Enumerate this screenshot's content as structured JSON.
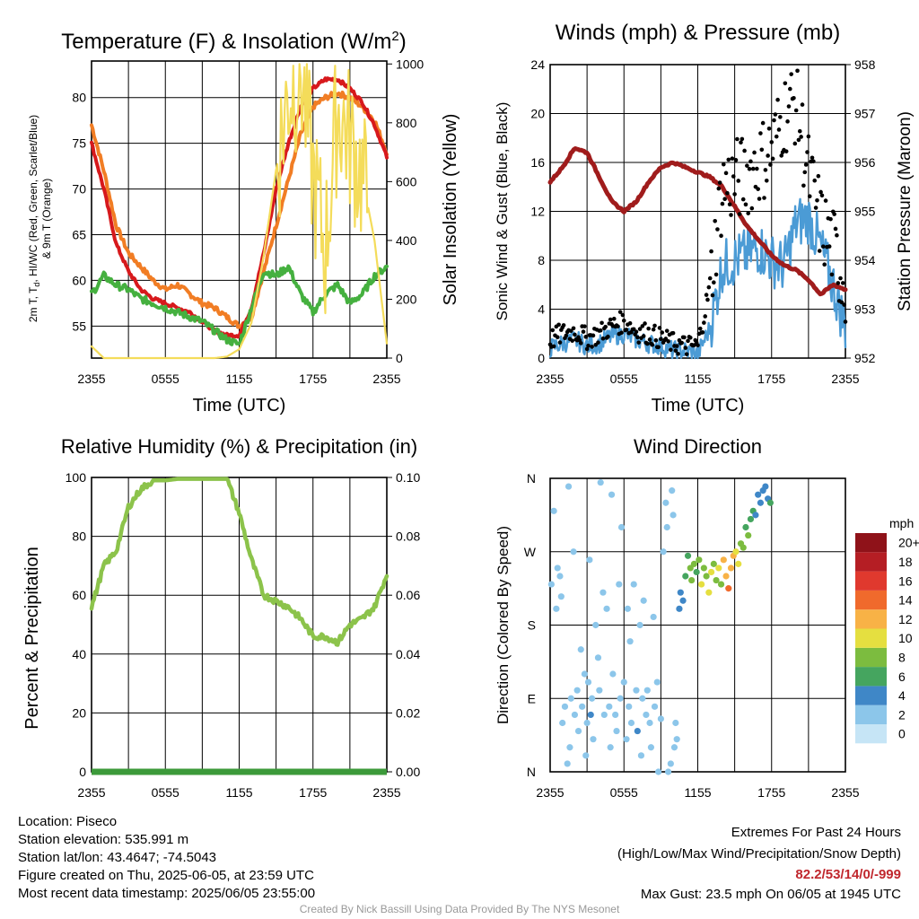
{
  "colors": {
    "temp_2m": "#d7191c",
    "dewpoint": "#45b03f",
    "temp_9m": "#f17d24",
    "insolation": "#f4dc5a",
    "wind_sonic": "#4b9bd5",
    "gust": "#000000",
    "pressure": "#a01c1c",
    "rh": "#8cc34b",
    "precip": "#3c9a3a",
    "extremes": "#c0272d"
  },
  "chart_data": [
    {
      "id": "temperature",
      "type": "line",
      "title": "Temperature (F) & Insolation (W/m",
      "title_sup": "2",
      "title_end": ")",
      "ylabel_lines": [
        "2m T, T",
        "d",
        ", HI/WC (Red, Green, Scarlet/Blue)",
        "& 9m T (Orange)"
      ],
      "y2label": "Solar Insolation (Yellow)",
      "xlabel": "Time (UTC)",
      "x_ticks": [
        "2355",
        "0555",
        "1155",
        "1755",
        "2355"
      ],
      "ylim": [
        51.5,
        84
      ],
      "y_ticks": [
        55,
        60,
        65,
        70,
        75,
        80
      ],
      "y2lim": [
        0,
        1010
      ],
      "y2_ticks": [
        0,
        200,
        400,
        600,
        800,
        1000
      ],
      "x_hours": [
        0,
        1,
        2,
        3,
        4,
        5,
        6,
        7,
        8,
        9,
        10,
        11,
        12,
        13,
        14,
        15,
        16,
        17,
        18,
        19,
        20,
        21,
        22,
        23,
        24
      ],
      "series": [
        {
          "key": "temp_9m",
          "axis": "left",
          "values": [
            77,
            72,
            66,
            63,
            61.5,
            60,
            59,
            59.5,
            58.5,
            57.5,
            57,
            56,
            55,
            56,
            61,
            66,
            71,
            76,
            79,
            80,
            80.5,
            80,
            79,
            77.5,
            74
          ]
        },
        {
          "key": "temp_2m",
          "axis": "left",
          "values": [
            75,
            70,
            64,
            61,
            59,
            58,
            57.5,
            57,
            56.5,
            55.5,
            54.5,
            54,
            54,
            57,
            63,
            70,
            75,
            79,
            81,
            82,
            82,
            81,
            79.5,
            77,
            73.5
          ]
        },
        {
          "key": "dewpoint",
          "axis": "left",
          "values": [
            58.5,
            60.5,
            59.5,
            59,
            58,
            57.5,
            57,
            56.5,
            56,
            55.5,
            54.5,
            53.5,
            53,
            57,
            61,
            60.5,
            61.5,
            58.5,
            56.5,
            58.5,
            59.5,
            57.5,
            58.5,
            60.5,
            61.5
          ]
        },
        {
          "key": "insolation",
          "axis": "right",
          "values": [
            40,
            0,
            0,
            0,
            0,
            0,
            0,
            0,
            0,
            0,
            0,
            5,
            30,
            120,
            350,
            640,
            900,
            980,
            620,
            360,
            850,
            740,
            620,
            400,
            50
          ]
        }
      ]
    },
    {
      "id": "winds",
      "type": "line",
      "title": "Winds (mph) & Pressure (mb)",
      "ylabel": "Sonic Wind & Gust (Blue, Black)",
      "y2label": "Station Pressure (Maroon)",
      "xlabel": "Time (UTC)",
      "x_ticks": [
        "2355",
        "0555",
        "1155",
        "1755",
        "2355"
      ],
      "ylim": [
        0,
        24
      ],
      "y_ticks": [
        0,
        4,
        8,
        12,
        16,
        20,
        24
      ],
      "y2lim": [
        952,
        958
      ],
      "y2_ticks": [
        952,
        953,
        954,
        955,
        956,
        957,
        958
      ],
      "x_hours": [
        0,
        1,
        2,
        3,
        4,
        5,
        6,
        7,
        8,
        9,
        10,
        11,
        12,
        13,
        14,
        15,
        16,
        17,
        18,
        19,
        20,
        21,
        22,
        23,
        24
      ],
      "series": [
        {
          "key": "wind_sonic",
          "axis": "left",
          "values": [
            0.8,
            1.2,
            1.5,
            1.0,
            1.2,
            1.8,
            2.0,
            1.5,
            1.2,
            1.0,
            0.6,
            0.6,
            0.3,
            2.5,
            7.5,
            8.0,
            8.5,
            9.0,
            8.0,
            7.5,
            11.0,
            11.5,
            9.0,
            6.0,
            2.5
          ]
        },
        {
          "key": "gust",
          "axis": "left",
          "values": [
            1.5,
            2.0,
            2.2,
            1.6,
            2.0,
            2.6,
            3.0,
            2.2,
            2.0,
            1.6,
            1.2,
            1.0,
            1.0,
            6.0,
            14.0,
            14.5,
            15.0,
            16.0,
            17.0,
            20.0,
            21.0,
            15.0,
            11.0,
            9.0,
            6.0
          ]
        },
        {
          "key": "pressure",
          "axis": "right",
          "values": [
            955.6,
            955.9,
            956.3,
            956.2,
            955.7,
            955.2,
            955.0,
            955.2,
            955.6,
            955.9,
            956.0,
            955.9,
            955.8,
            955.7,
            955.5,
            955.1,
            954.7,
            954.4,
            954.1,
            953.9,
            953.8,
            953.6,
            953.3,
            953.5,
            953.4
          ]
        }
      ]
    },
    {
      "id": "humidity",
      "type": "line",
      "title": "Relative Humidity (%) & Precipitation (in)",
      "ylabel": "Percent & Precipitation",
      "x_ticks": [
        "2355",
        "0555",
        "1155",
        "1755",
        "2355"
      ],
      "ylim": [
        0,
        100
      ],
      "y_ticks": [
        0,
        20,
        40,
        60,
        80,
        100
      ],
      "y2lim": [
        0,
        0.1
      ],
      "y2_ticks": [
        "0.00",
        "0.02",
        "0.04",
        "0.06",
        "0.08",
        "0.10"
      ],
      "x_hours": [
        0,
        1,
        2,
        3,
        4,
        5,
        6,
        7,
        8,
        9,
        10,
        11,
        12,
        13,
        14,
        15,
        16,
        17,
        18,
        19,
        20,
        21,
        22,
        23,
        24
      ],
      "series": [
        {
          "key": "rh",
          "axis": "left",
          "values": [
            56,
            70,
            75,
            90,
            96,
            99,
            99,
            99.5,
            99.5,
            99.5,
            99.5,
            99.5,
            88,
            72,
            60,
            58,
            56,
            52,
            46,
            46,
            44,
            50,
            52,
            56,
            67
          ]
        },
        {
          "key": "precip",
          "axis": "right",
          "values": [
            0,
            0,
            0,
            0,
            0,
            0,
            0,
            0,
            0,
            0,
            0,
            0,
            0,
            0,
            0,
            0,
            0,
            0,
            0,
            0,
            0,
            0,
            0,
            0,
            0
          ]
        }
      ]
    },
    {
      "id": "direction",
      "type": "scatter",
      "title": "Wind Direction",
      "ylabel": "Direction (Colored By Speed)",
      "x_ticks": [
        "2355",
        "0555",
        "1155",
        "1755",
        "2355"
      ],
      "y_ticks": [
        "N",
        "E",
        "S",
        "W",
        "N"
      ],
      "ylim": [
        0,
        360
      ],
      "colorbar_title": "mph",
      "colorbar_labels": [
        "0",
        "2",
        "4",
        "6",
        "8",
        "10",
        "12",
        "14",
        "16",
        "18",
        "20+"
      ],
      "colorbar_colors": [
        "#c6e5f6",
        "#8cc6ea",
        "#3f87c7",
        "#45a55f",
        "#7cbc3f",
        "#e5df40",
        "#f8b246",
        "#f06a2c",
        "#e0392e",
        "#b51e24",
        "#8f1219"
      ],
      "points_hour_deg_mph": [
        [
          0.1,
          230,
          1
        ],
        [
          0.3,
          320,
          1
        ],
        [
          0.5,
          200,
          1
        ],
        [
          0.6,
          250,
          1
        ],
        [
          0.8,
          240,
          1
        ],
        [
          0.9,
          215,
          1
        ],
        [
          1.0,
          60,
          1
        ],
        [
          1.2,
          80,
          1
        ],
        [
          1.4,
          10,
          1
        ],
        [
          1.5,
          350,
          1
        ],
        [
          1.6,
          30,
          1
        ],
        [
          1.7,
          90,
          1
        ],
        [
          1.9,
          270,
          1
        ],
        [
          2.0,
          70,
          1
        ],
        [
          2.2,
          100,
          1
        ],
        [
          2.3,
          50,
          2
        ],
        [
          2.5,
          150,
          1
        ],
        [
          2.6,
          80,
          1
        ],
        [
          2.8,
          120,
          1
        ],
        [
          2.9,
          20,
          1
        ],
        [
          3.0,
          60,
          1
        ],
        [
          3.1,
          110,
          1
        ],
        [
          3.2,
          260,
          1
        ],
        [
          3.3,
          70,
          3
        ],
        [
          3.4,
          90,
          2
        ],
        [
          3.5,
          40,
          1
        ],
        [
          3.7,
          180,
          1
        ],
        [
          3.9,
          140,
          1
        ],
        [
          4.0,
          100,
          1
        ],
        [
          4.1,
          355,
          1
        ],
        [
          4.3,
          220,
          1
        ],
        [
          4.4,
          70,
          1
        ],
        [
          4.6,
          200,
          1
        ],
        [
          4.8,
          80,
          2
        ],
        [
          4.9,
          30,
          1
        ],
        [
          5.0,
          340,
          1
        ],
        [
          5.1,
          120,
          2
        ],
        [
          5.3,
          70,
          2
        ],
        [
          5.4,
          50,
          1
        ],
        [
          5.6,
          230,
          1
        ],
        [
          5.7,
          90,
          1
        ],
        [
          5.8,
          300,
          1
        ],
        [
          6.0,
          110,
          1
        ],
        [
          6.2,
          40,
          2
        ],
        [
          6.3,
          200,
          1
        ],
        [
          6.4,
          80,
          1
        ],
        [
          6.5,
          160,
          1
        ],
        [
          6.6,
          60,
          1
        ],
        [
          6.8,
          230,
          1
        ],
        [
          7.0,
          100,
          1
        ],
        [
          7.1,
          50,
          3
        ],
        [
          7.3,
          180,
          1
        ],
        [
          7.4,
          20,
          1
        ],
        [
          7.5,
          90,
          1
        ],
        [
          7.6,
          210,
          2
        ],
        [
          7.8,
          70,
          1
        ],
        [
          7.9,
          100,
          2
        ],
        [
          8.1,
          60,
          1
        ],
        [
          8.2,
          30,
          1
        ],
        [
          8.4,
          190,
          1
        ],
        [
          8.5,
          80,
          1
        ],
        [
          8.7,
          110,
          1
        ],
        [
          8.8,
          0,
          1
        ],
        [
          9.0,
          65,
          2
        ],
        [
          9.2,
          270,
          1
        ],
        [
          9.4,
          330,
          1
        ],
        [
          9.5,
          300,
          1
        ],
        [
          9.6,
          0,
          1
        ],
        [
          9.8,
          10,
          1
        ],
        [
          9.9,
          345,
          1
        ],
        [
          10.0,
          315,
          1
        ],
        [
          10.1,
          30,
          1
        ],
        [
          10.2,
          60,
          1
        ],
        [
          10.3,
          40,
          1
        ],
        [
          10.5,
          200,
          3
        ],
        [
          10.6,
          220,
          4
        ],
        [
          10.8,
          210,
          4
        ],
        [
          11.0,
          240,
          5
        ],
        [
          11.2,
          265,
          6
        ],
        [
          11.4,
          250,
          7
        ],
        [
          11.5,
          235,
          8
        ],
        [
          11.7,
          255,
          7
        ],
        [
          11.9,
          245,
          6
        ],
        [
          12.1,
          260,
          8
        ],
        [
          12.3,
          230,
          9
        ],
        [
          12.5,
          250,
          8
        ],
        [
          12.7,
          240,
          7
        ],
        [
          12.9,
          220,
          10
        ],
        [
          13.1,
          245,
          9
        ],
        [
          13.3,
          255,
          8
        ],
        [
          13.5,
          235,
          7
        ],
        [
          13.7,
          250,
          10
        ],
        [
          13.9,
          230,
          8
        ],
        [
          14.1,
          260,
          11
        ],
        [
          14.3,
          240,
          12
        ],
        [
          14.5,
          225,
          13
        ],
        [
          14.7,
          250,
          12
        ],
        [
          14.9,
          265,
          11
        ],
        [
          15.1,
          270,
          10
        ],
        [
          15.3,
          255,
          9
        ],
        [
          15.5,
          280,
          8
        ],
        [
          15.7,
          275,
          7
        ],
        [
          15.9,
          300,
          6
        ],
        [
          16.1,
          290,
          8
        ],
        [
          16.3,
          310,
          6
        ],
        [
          16.5,
          320,
          5
        ],
        [
          16.7,
          315,
          4
        ],
        [
          16.9,
          340,
          4
        ],
        [
          17.1,
          330,
          3
        ],
        [
          17.3,
          345,
          4
        ],
        [
          17.5,
          350,
          4
        ],
        [
          17.7,
          335,
          3
        ],
        [
          17.9,
          330,
          5
        ]
      ]
    }
  ],
  "footer": {
    "location": "Location: Piseco",
    "elevation": "Station elevation: 535.991 m",
    "latlon": "Station lat/lon: 43.4647; -74.5043",
    "created": "Figure created on Thu, 2025-06-05, at 23:59 UTC",
    "recent": "Most recent data timestamp: 2025/06/05 23:55:00",
    "extremes_title": "Extremes For Past 24 Hours",
    "extremes_desc": "(High/Low/Max Wind/Precipitation/Snow Depth)",
    "extremes_values": "82.2/53/14/0/-999",
    "max_gust": "Max Gust: 23.5 mph On 06/05 at 1945 UTC",
    "credit": "Created By Nick Bassill Using Data Provided By The NYS Mesonet"
  }
}
